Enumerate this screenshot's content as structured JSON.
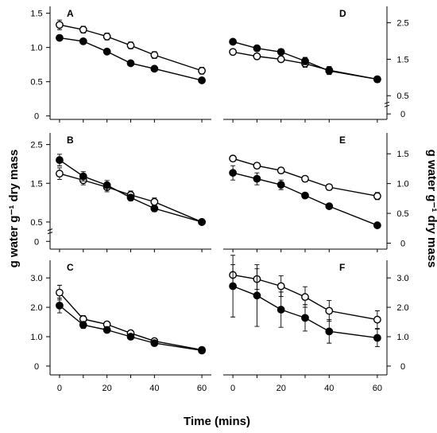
{
  "figure": {
    "xlabel": "Time (mins)",
    "ylabel_left": "g water g⁻¹ dry mass",
    "ylabel_right": "g water g⁻¹ dry mass"
  },
  "chart_data": [
    {
      "type": "line",
      "panel": "A",
      "yaxis_side": "left",
      "x": [
        0,
        10,
        20,
        30,
        40,
        60
      ],
      "xlim": [
        -4,
        64
      ],
      "xticks": [],
      "xtick_labels": [],
      "ylim": [
        -0.05,
        1.6
      ],
      "yticks": [
        0,
        0.5,
        1.0,
        1.5
      ],
      "ytick_labels": [
        "0",
        "0.5",
        "1.0",
        "1.5"
      ],
      "axis_break": false,
      "series": [
        {
          "marker": "open-circle",
          "values": [
            1.33,
            1.26,
            1.16,
            1.03,
            0.89,
            0.66
          ],
          "errors": [
            0.07,
            0.05,
            0.05,
            0.05,
            0.05,
            0.05
          ]
        },
        {
          "marker": "filled-circle",
          "values": [
            1.14,
            1.09,
            0.94,
            0.77,
            0.69,
            0.52
          ],
          "errors": [
            0.02,
            0.02,
            0.02,
            0.02,
            0.02,
            0.02
          ]
        }
      ]
    },
    {
      "type": "line",
      "panel": "B",
      "yaxis_side": "left",
      "x": [
        0,
        10,
        20,
        30,
        40,
        60
      ],
      "xlim": [
        -4,
        64
      ],
      "xticks": [],
      "xtick_labels": [],
      "ylim": [
        -0.2,
        2.8
      ],
      "yticks": [
        0,
        0.5,
        1.5,
        2.5
      ],
      "ytick_labels": [
        "0",
        "0.5",
        "1.5",
        "2.5"
      ],
      "axis_break": true,
      "series": [
        {
          "marker": "open-circle",
          "values": [
            1.75,
            1.58,
            1.4,
            1.2,
            1.02,
            0.5
          ],
          "errors": [
            0.15,
            0.12,
            0.12,
            0.1,
            0.1,
            0.05
          ]
        },
        {
          "marker": "filled-circle",
          "values": [
            2.1,
            1.68,
            1.45,
            1.13,
            0.85,
            0.5
          ],
          "errors": [
            0.15,
            0.12,
            0.12,
            0.08,
            0.08,
            0.05
          ]
        }
      ]
    },
    {
      "type": "line",
      "panel": "C",
      "yaxis_side": "left",
      "x": [
        0,
        10,
        20,
        30,
        40,
        60
      ],
      "xlim": [
        -4,
        64
      ],
      "xticks": [
        0,
        20,
        40,
        60
      ],
      "xtick_labels": [
        "0",
        "20",
        "40",
        "60"
      ],
      "ylim": [
        -0.3,
        3.6
      ],
      "yticks": [
        0,
        1.0,
        2.0,
        3.0
      ],
      "ytick_labels": [
        "0",
        "1.0",
        "2.0",
        "3.0"
      ],
      "axis_break": false,
      "series": [
        {
          "marker": "open-circle",
          "values": [
            2.5,
            1.6,
            1.42,
            1.12,
            0.85,
            0.55
          ],
          "errors": [
            0.25,
            0.12,
            0.08,
            0.06,
            0.06,
            0.05
          ]
        },
        {
          "marker": "filled-circle",
          "values": [
            2.06,
            1.4,
            1.23,
            1.0,
            0.78,
            0.53
          ],
          "errors": [
            0.25,
            0.12,
            0.08,
            0.06,
            0.06,
            0.05
          ]
        }
      ]
    },
    {
      "type": "line",
      "panel": "D",
      "yaxis_side": "right",
      "x": [
        0,
        10,
        20,
        30,
        40,
        60
      ],
      "xlim": [
        -4,
        64
      ],
      "xticks": [],
      "xtick_labels": [],
      "ylim": [
        -0.15,
        2.95
      ],
      "yticks": [
        0,
        0.5,
        1.5,
        2.5
      ],
      "ytick_labels": [
        "0",
        "0.5",
        "1.5",
        "2.5"
      ],
      "axis_break": true,
      "series": [
        {
          "marker": "open-circle",
          "values": [
            1.7,
            1.58,
            1.5,
            1.38,
            1.2,
            0.95
          ],
          "errors": [
            0.05,
            0.08,
            0.08,
            0.1,
            0.1,
            0.08
          ]
        },
        {
          "marker": "filled-circle",
          "values": [
            1.98,
            1.8,
            1.7,
            1.45,
            1.18,
            0.95
          ],
          "errors": [
            0.05,
            0.08,
            0.08,
            0.1,
            0.1,
            0.08
          ]
        }
      ]
    },
    {
      "type": "line",
      "panel": "E",
      "yaxis_side": "right",
      "x": [
        0,
        10,
        20,
        30,
        40,
        60
      ],
      "xlim": [
        -4,
        64
      ],
      "xticks": [],
      "xtick_labels": [],
      "ylim": [
        -0.1,
        1.85
      ],
      "yticks": [
        0,
        0.5,
        1.0,
        1.5
      ],
      "ytick_labels": [
        "0",
        "0.5",
        "1.0",
        "1.5"
      ],
      "axis_break": false,
      "series": [
        {
          "marker": "open-circle",
          "values": [
            1.42,
            1.3,
            1.22,
            1.08,
            0.94,
            0.79
          ],
          "errors": [
            0.05,
            0.05,
            0.05,
            0.05,
            0.05,
            0.06
          ]
        },
        {
          "marker": "filled-circle",
          "values": [
            1.18,
            1.08,
            0.98,
            0.8,
            0.62,
            0.3
          ],
          "errors": [
            0.12,
            0.1,
            0.08,
            0.04,
            0.04,
            0.02
          ]
        }
      ]
    },
    {
      "type": "line",
      "panel": "F",
      "yaxis_side": "right",
      "x": [
        0,
        10,
        20,
        30,
        40,
        60
      ],
      "xlim": [
        -4,
        64
      ],
      "xticks": [
        0,
        20,
        40,
        60
      ],
      "xtick_labels": [
        "0",
        "20",
        "40",
        "60"
      ],
      "ylim": [
        -0.3,
        3.6
      ],
      "yticks": [
        0,
        1.0,
        2.0,
        3.0
      ],
      "ytick_labels": [
        "0",
        "1.0",
        "2.0",
        "3.0"
      ],
      "axis_break": false,
      "series": [
        {
          "marker": "open-circle",
          "values": [
            3.1,
            2.96,
            2.72,
            2.35,
            1.88,
            1.58
          ],
          "errors": [
            0.35,
            0.35,
            0.35,
            0.35,
            0.35,
            0.3
          ]
        },
        {
          "marker": "filled-circle",
          "values": [
            2.72,
            2.4,
            1.92,
            1.64,
            1.18,
            0.96
          ],
          "errors": [
            1.05,
            1.05,
            0.6,
            0.45,
            0.4,
            0.3
          ]
        }
      ]
    }
  ]
}
